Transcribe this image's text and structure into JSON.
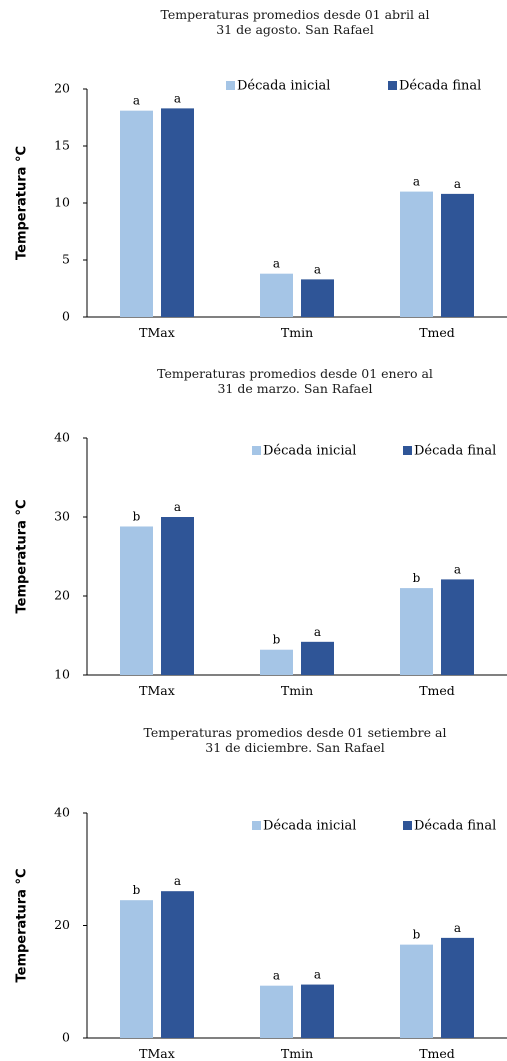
{
  "colors": {
    "initial": "#a5c5e6",
    "final": "#2f5597",
    "axis": "#000000"
  },
  "chart_data": [
    {
      "type": "bar",
      "title": [
        "Temperaturas promedios desde 01 abril al",
        "31 de agosto. San Rafael"
      ],
      "ylabel": "Temperatura °C",
      "xlabel": "",
      "categories": [
        "TMax",
        "Tmin",
        "Tmed"
      ],
      "ylim": [
        0,
        20
      ],
      "yticks": [
        "0",
        "5",
        "10",
        "15",
        "20"
      ],
      "legend_position": "top-right",
      "grid": false,
      "series": [
        {
          "name": "Década inicial",
          "values": [
            18.1,
            3.8,
            11.0
          ],
          "labels": [
            "a",
            "a",
            "a"
          ]
        },
        {
          "name": "Década final",
          "values": [
            18.3,
            3.3,
            10.8
          ],
          "labels": [
            "a",
            "a",
            "a"
          ]
        }
      ]
    },
    {
      "type": "bar",
      "title": [
        "Temperaturas promedios desde 01 enero al",
        "31 de marzo. San Rafael"
      ],
      "ylabel": "Temperatura °C",
      "xlabel": "",
      "categories": [
        "TMax",
        "Tmin",
        "Tmed"
      ],
      "ylim": [
        10,
        40
      ],
      "yticks": [
        "10",
        "20",
        "30",
        "40"
      ],
      "legend_position": "top-right",
      "grid": false,
      "series": [
        {
          "name": "Década inicial",
          "values": [
            28.8,
            13.2,
            21.0
          ],
          "labels": [
            "b",
            "b",
            "b"
          ]
        },
        {
          "name": "Década final",
          "values": [
            30.0,
            14.2,
            22.1
          ],
          "labels": [
            "a",
            "a",
            "a"
          ]
        }
      ]
    },
    {
      "type": "bar",
      "title": [
        "Temperaturas promedios desde 01 setiembre al",
        "31 de diciembre. San Rafael"
      ],
      "ylabel": "Temperatura °C",
      "xlabel": "",
      "categories": [
        "TMax",
        "Tmin",
        "Tmed"
      ],
      "ylim": [
        0,
        40
      ],
      "yticks": [
        "0",
        "20",
        "40"
      ],
      "legend_position": "top-right",
      "grid": false,
      "series": [
        {
          "name": "Década inicial",
          "values": [
            24.5,
            9.3,
            16.6
          ],
          "labels": [
            "b",
            "a",
            "b"
          ]
        },
        {
          "name": "Década final",
          "values": [
            26.1,
            9.5,
            17.8
          ],
          "labels": [
            "a",
            "a",
            "a"
          ]
        }
      ]
    }
  ]
}
